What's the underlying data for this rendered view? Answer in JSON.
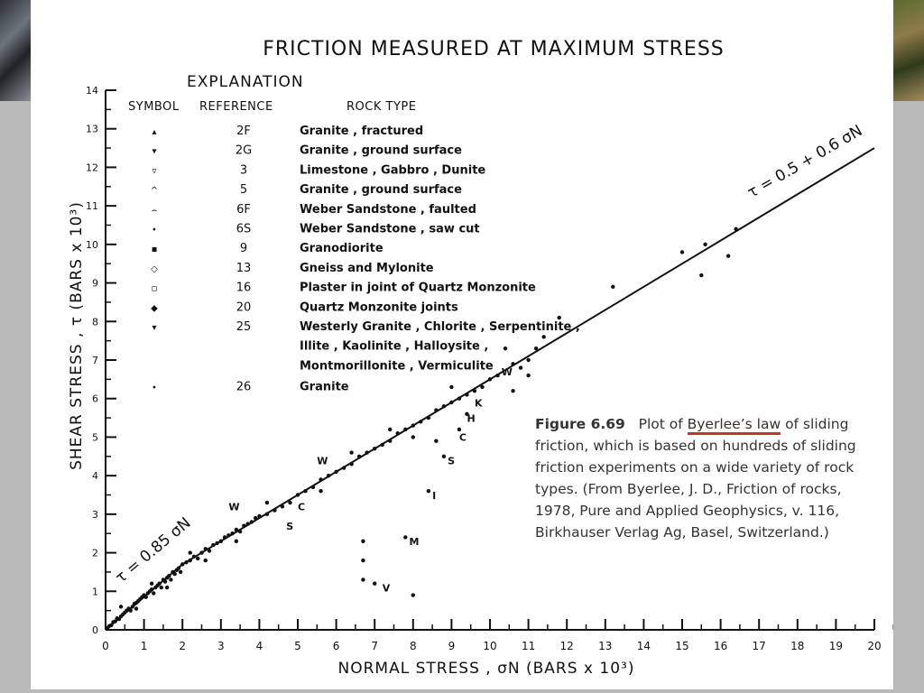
{
  "chart_data": {
    "type": "scatter",
    "title": "FRICTION MEASURED AT MAXIMUM STRESS",
    "xlabel": "NORMAL STRESS , σN (BARS x 10³)",
    "ylabel": "SHEAR STRESS , τ (BARS x 10³)",
    "xlim": [
      0,
      20
    ],
    "ylim": [
      0,
      14
    ],
    "xticks": [
      "0",
      "1",
      "2",
      "3",
      "4",
      "5",
      "6",
      "7",
      "8",
      "9",
      "10",
      "11",
      "12",
      "13",
      "14",
      "15",
      "16",
      "17",
      "18",
      "19",
      "20"
    ],
    "yticks": [
      "0",
      "1",
      "2",
      "3",
      "4",
      "5",
      "6",
      "7",
      "8",
      "9",
      "10",
      "11",
      "12",
      "13",
      "14"
    ],
    "grid": false,
    "lines": [
      {
        "label": "τ = 0.85 σN",
        "x": [
          0,
          2
        ],
        "y": [
          0,
          1.7
        ]
      },
      {
        "label": "τ = 0.5 + 0.6 σN",
        "x": [
          2,
          20
        ],
        "y": [
          1.7,
          12.5
        ]
      }
    ],
    "explanation": {
      "heading": "EXPLANATION",
      "columns": [
        "SYMBOL",
        "REFERENCE",
        "ROCK TYPE"
      ],
      "rows": [
        {
          "symbol": "▴",
          "reference": "2F",
          "rock_type": "Granite , fractured"
        },
        {
          "symbol": "▾",
          "reference": "2G",
          "rock_type": "Granite , ground surface"
        },
        {
          "symbol": "▿",
          "reference": "3",
          "rock_type": "Limestone , Gabbro , Dunite"
        },
        {
          "symbol": "^",
          "reference": "5",
          "rock_type": "Granite , ground surface"
        },
        {
          "symbol": "⌢",
          "reference": "6F",
          "rock_type": "Weber Sandstone , faulted"
        },
        {
          "symbol": "•",
          "reference": "6S",
          "rock_type": "Weber Sandstone , saw cut"
        },
        {
          "symbol": "▪",
          "reference": "9",
          "rock_type": "Granodiorite"
        },
        {
          "symbol": "◇",
          "reference": "13",
          "rock_type": "Gneiss and Mylonite"
        },
        {
          "symbol": "▫",
          "reference": "16",
          "rock_type": "Plaster in joint of Quartz Monzonite"
        },
        {
          "symbol": "◆",
          "reference": "20",
          "rock_type": "Quartz Monzonite joints"
        },
        {
          "symbol": "▾",
          "reference": "25",
          "rock_type": "Westerly Granite , Chlorite , Serpentinite ,"
        },
        {
          "symbol": "",
          "reference": "",
          "rock_type": "Illite , Kaolinite , Halloysite ,"
        },
        {
          "symbol": "",
          "reference": "",
          "rock_type": "Montmorillonite , Vermiculite"
        },
        {
          "symbol": "•",
          "reference": "26",
          "rock_type": "Granite"
        }
      ]
    },
    "point_labels": [
      {
        "text": "W",
        "x": 10.3,
        "y": 6.6
      },
      {
        "text": "K",
        "x": 9.6,
        "y": 5.8
      },
      {
        "text": "H",
        "x": 9.4,
        "y": 5.4
      },
      {
        "text": "C",
        "x": 9.2,
        "y": 4.9
      },
      {
        "text": "S",
        "x": 8.9,
        "y": 4.3
      },
      {
        "text": "I",
        "x": 8.5,
        "y": 3.4
      },
      {
        "text": "M",
        "x": 7.9,
        "y": 2.2
      },
      {
        "text": "V",
        "x": 7.2,
        "y": 1.0
      },
      {
        "text": "W",
        "x": 5.5,
        "y": 4.3
      },
      {
        "text": "W",
        "x": 3.2,
        "y": 3.1
      },
      {
        "text": "C",
        "x": 5.0,
        "y": 3.1
      },
      {
        "text": "S",
        "x": 4.7,
        "y": 2.6
      }
    ],
    "points": [
      [
        0.05,
        0.05
      ],
      [
        0.1,
        0.1
      ],
      [
        0.15,
        0.12
      ],
      [
        0.2,
        0.2
      ],
      [
        0.25,
        0.22
      ],
      [
        0.3,
        0.3
      ],
      [
        0.35,
        0.28
      ],
      [
        0.4,
        0.35
      ],
      [
        0.45,
        0.4
      ],
      [
        0.5,
        0.45
      ],
      [
        0.55,
        0.5
      ],
      [
        0.6,
        0.55
      ],
      [
        0.65,
        0.5
      ],
      [
        0.7,
        0.6
      ],
      [
        0.75,
        0.68
      ],
      [
        0.8,
        0.7
      ],
      [
        0.85,
        0.75
      ],
      [
        0.9,
        0.8
      ],
      [
        0.95,
        0.85
      ],
      [
        1.0,
        0.9
      ],
      [
        1.05,
        0.85
      ],
      [
        1.1,
        0.95
      ],
      [
        1.15,
        1.0
      ],
      [
        1.2,
        1.05
      ],
      [
        1.25,
        0.95
      ],
      [
        1.3,
        1.1
      ],
      [
        1.35,
        1.15
      ],
      [
        1.4,
        1.2
      ],
      [
        1.45,
        1.1
      ],
      [
        1.5,
        1.3
      ],
      [
        1.55,
        1.25
      ],
      [
        1.6,
        1.35
      ],
      [
        1.65,
        1.4
      ],
      [
        1.7,
        1.3
      ],
      [
        1.75,
        1.5
      ],
      [
        1.8,
        1.45
      ],
      [
        1.85,
        1.55
      ],
      [
        1.9,
        1.6
      ],
      [
        1.95,
        1.5
      ],
      [
        2.0,
        1.7
      ],
      [
        2.1,
        1.75
      ],
      [
        2.2,
        1.8
      ],
      [
        2.3,
        1.9
      ],
      [
        2.4,
        1.85
      ],
      [
        2.5,
        2.0
      ],
      [
        2.6,
        2.1
      ],
      [
        2.7,
        2.05
      ],
      [
        2.8,
        2.2
      ],
      [
        2.9,
        2.25
      ],
      [
        3.0,
        2.3
      ],
      [
        3.1,
        2.4
      ],
      [
        3.2,
        2.45
      ],
      [
        3.3,
        2.5
      ],
      [
        3.4,
        2.6
      ],
      [
        3.5,
        2.55
      ],
      [
        3.6,
        2.7
      ],
      [
        3.7,
        2.75
      ],
      [
        3.8,
        2.8
      ],
      [
        3.9,
        2.9
      ],
      [
        4.0,
        2.95
      ],
      [
        4.2,
        3.0
      ],
      [
        4.4,
        3.1
      ],
      [
        4.6,
        3.2
      ],
      [
        4.8,
        3.3
      ],
      [
        5.0,
        3.5
      ],
      [
        5.2,
        3.6
      ],
      [
        5.4,
        3.7
      ],
      [
        5.6,
        3.9
      ],
      [
        5.8,
        4.0
      ],
      [
        6.0,
        4.1
      ],
      [
        6.2,
        4.2
      ],
      [
        6.4,
        4.3
      ],
      [
        6.6,
        4.5
      ],
      [
        6.8,
        4.6
      ],
      [
        7.0,
        4.7
      ],
      [
        7.2,
        4.8
      ],
      [
        7.4,
        4.9
      ],
      [
        7.6,
        5.1
      ],
      [
        7.8,
        5.2
      ],
      [
        8.0,
        5.3
      ],
      [
        8.2,
        5.4
      ],
      [
        8.4,
        5.5
      ],
      [
        8.6,
        5.7
      ],
      [
        8.8,
        5.8
      ],
      [
        9.0,
        5.9
      ],
      [
        9.2,
        6.0
      ],
      [
        9.4,
        6.1
      ],
      [
        9.6,
        6.2
      ],
      [
        9.8,
        6.3
      ],
      [
        10.0,
        6.5
      ],
      [
        10.2,
        6.6
      ],
      [
        10.4,
        7.3
      ],
      [
        10.6,
        6.9
      ],
      [
        10.8,
        6.8
      ],
      [
        11.0,
        7.0
      ],
      [
        11.2,
        7.3
      ],
      [
        11.4,
        7.6
      ],
      [
        11.8,
        8.1
      ],
      [
        13.2,
        8.9
      ],
      [
        15.0,
        9.8
      ],
      [
        15.5,
        9.2
      ],
      [
        15.6,
        10.0
      ],
      [
        16.2,
        9.7
      ],
      [
        16.4,
        10.4
      ],
      [
        0.4,
        0.6
      ],
      [
        0.8,
        0.55
      ],
      [
        1.2,
        1.2
      ],
      [
        1.6,
        1.1
      ],
      [
        2.2,
        2.0
      ],
      [
        2.6,
        1.8
      ],
      [
        3.4,
        2.3
      ],
      [
        4.2,
        3.3
      ],
      [
        5.6,
        3.6
      ],
      [
        6.4,
        4.6
      ],
      [
        7.4,
        5.2
      ],
      [
        8.0,
        5.0
      ],
      [
        8.6,
        4.9
      ],
      [
        9.0,
        6.3
      ],
      [
        9.4,
        5.6
      ],
      [
        10.6,
        6.2
      ],
      [
        11.0,
        6.6
      ],
      [
        6.7,
        2.3
      ],
      [
        6.7,
        1.3
      ],
      [
        6.7,
        1.8
      ],
      [
        7.0,
        1.2
      ],
      [
        8.0,
        0.9
      ],
      [
        7.8,
        2.4
      ],
      [
        8.8,
        4.5
      ],
      [
        8.4,
        3.6
      ],
      [
        9.2,
        5.2
      ]
    ]
  },
  "caption": {
    "label": "Figure 6.69",
    "lead": "Plot of ",
    "law": "Byerlee’s law",
    "rest": " of sliding friction, which is based on hundreds of sliding friction experiments on a wide variety of rock types. (From Byerlee, J. D., Friction of rocks, 1978, Pure and Applied Geophysics, v. 116, Birkhauser Verlag Ag, Basel, Switzerland.)"
  },
  "colors": {
    "slide_bg": "#ffffff",
    "page_bg": "#b9b9b9",
    "ink": "#111111",
    "caption_text": "#333333",
    "underline": "#c0392b"
  }
}
